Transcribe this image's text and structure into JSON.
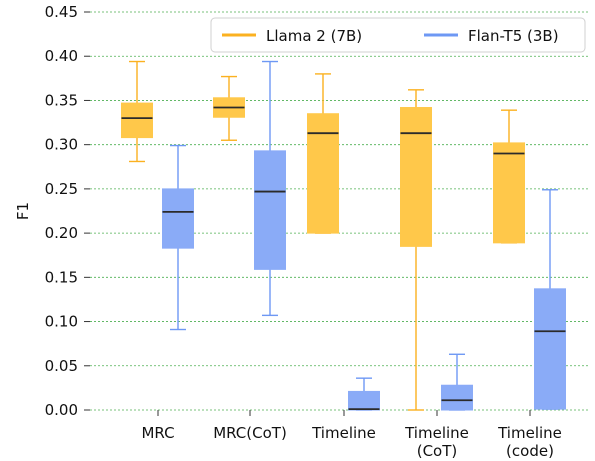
{
  "chart_data": {
    "type": "box",
    "ylabel": "F1",
    "xlabel": "",
    "ylim": [
      0,
      0.45
    ],
    "yticks": [
      "0.00",
      "0.05",
      "0.10",
      "0.15",
      "0.20",
      "0.25",
      "0.30",
      "0.35",
      "0.40",
      "0.45"
    ],
    "categories": [
      [
        "MRC"
      ],
      [
        "MRC(CoT)"
      ],
      [
        "Timeline"
      ],
      [
        "Timeline",
        "(CoT)"
      ],
      [
        "Timeline",
        "(code)"
      ]
    ],
    "grid": "horizontal, dashed green",
    "legend_position": "top-right",
    "series": [
      {
        "name": "Llama 2 (7B)",
        "color": "#fbb120",
        "fill": "#ffc84a",
        "boxes": [
          {
            "whisker_low": 0.281,
            "q1": 0.308,
            "median": 0.33,
            "q3": 0.347,
            "whisker_high": 0.394
          },
          {
            "whisker_low": 0.305,
            "q1": 0.331,
            "median": 0.342,
            "q3": 0.353,
            "whisker_high": 0.377
          },
          {
            "whisker_low": 0.2,
            "q1": 0.2,
            "median": 0.313,
            "q3": 0.335,
            "whisker_high": 0.38
          },
          {
            "whisker_low": 0.0,
            "q1": 0.185,
            "median": 0.313,
            "q3": 0.342,
            "whisker_high": 0.362
          },
          {
            "whisker_low": 0.189,
            "q1": 0.189,
            "median": 0.29,
            "q3": 0.302,
            "whisker_high": 0.339
          }
        ]
      },
      {
        "name": "Flan-T5 (3B)",
        "color": "#6e98f4",
        "fill": "#8aabf7",
        "boxes": [
          {
            "whisker_low": 0.091,
            "q1": 0.183,
            "median": 0.224,
            "q3": 0.25,
            "whisker_high": 0.299
          },
          {
            "whisker_low": 0.107,
            "q1": 0.159,
            "median": 0.247,
            "q3": 0.293,
            "whisker_high": 0.394
          },
          {
            "whisker_low": 0.0,
            "q1": 0.0,
            "median": 0.001,
            "q3": 0.021,
            "whisker_high": 0.036
          },
          {
            "whisker_low": 0.0,
            "q1": 0.0,
            "median": 0.011,
            "q3": 0.028,
            "whisker_high": 0.063
          },
          {
            "whisker_low": 0.001,
            "q1": 0.001,
            "median": 0.089,
            "q3": 0.137,
            "whisker_high": 0.249
          }
        ]
      }
    ]
  }
}
